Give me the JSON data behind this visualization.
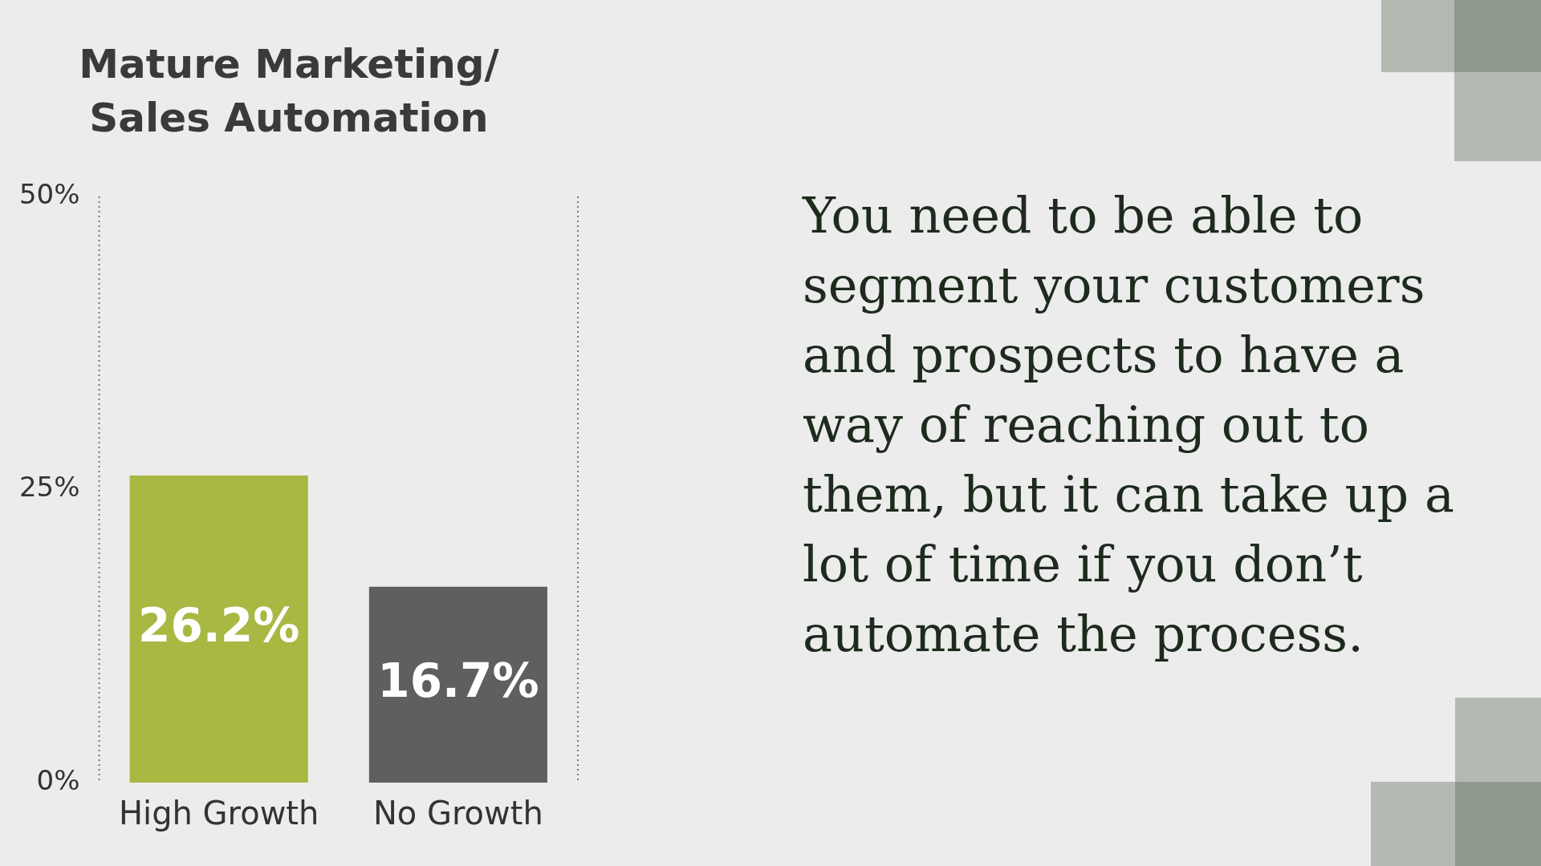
{
  "chart_data": {
    "type": "bar",
    "title": "Mature Marketing/\nSales Automation",
    "categories": [
      "High Growth",
      "No Growth"
    ],
    "values": [
      26.2,
      16.7
    ],
    "colors": [
      "#a9b843",
      "#5f5f5f"
    ],
    "ylim": [
      0,
      50
    ],
    "yticks": [
      {
        "value": 0,
        "label": "0%"
      },
      {
        "value": 25,
        "label": "25%"
      },
      {
        "value": 50,
        "label": "50%"
      }
    ],
    "value_labels": [
      "26.2%",
      "16.7%"
    ],
    "grid": false,
    "legend": false,
    "annotations": [
      "You need to be able to segment your customers and prospects to have a way of reaching out to them, but it can take up a lot of time if you don’t automate the process."
    ]
  }
}
